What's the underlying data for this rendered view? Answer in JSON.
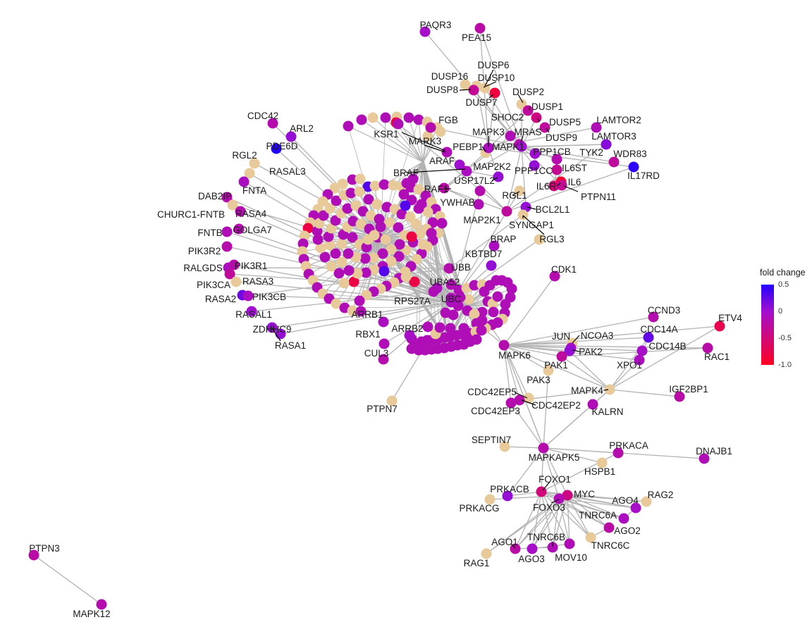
{
  "colors": {
    "edge": "#b3b3b3",
    "unmeasured": "#e8c99a",
    "scale_high": "#2200ff",
    "scale_mid": "#a10fd0",
    "scale_low": "#ff0022"
  },
  "legend": {
    "title": "fold change",
    "ticks": [
      "0.5",
      "0",
      "-0.5",
      "-1.0"
    ],
    "range": [
      -1.0,
      0.5
    ]
  },
  "nodes": [
    {
      "label": "PAQR3",
      "fc": -0.05
    },
    {
      "label": "PEA15",
      "fc": -0.25
    },
    {
      "label": "DUSP6",
      "fc": null
    },
    {
      "label": "DUSP16",
      "fc": null
    },
    {
      "label": "DUSP10",
      "fc": null
    },
    {
      "label": "DUSP8",
      "fc": -0.35
    },
    {
      "label": "DUSP7",
      "fc": -0.85
    },
    {
      "label": "DUSP2",
      "fc": null
    },
    {
      "label": "DUSP1",
      "fc": -0.3
    },
    {
      "label": "DUSP5",
      "fc": -0.45
    },
    {
      "label": "DUSP9",
      "fc": -0.3
    },
    {
      "label": "CDC42",
      "fc": -0.2
    },
    {
      "label": "ARL2",
      "fc": 0.05
    },
    {
      "label": "FGB",
      "fc": -0.2
    },
    {
      "label": "KSR1",
      "fc": -0.15
    },
    {
      "label": "MARK3",
      "fc": -0.15
    },
    {
      "label": "PEBP1",
      "fc": null
    },
    {
      "label": "SHOC2",
      "fc": -0.15
    },
    {
      "label": "MAPK3",
      "fc": -0.1
    },
    {
      "label": "MRAS",
      "fc": -0.2
    },
    {
      "label": "MAPK1",
      "fc": 0.0
    },
    {
      "label": "LAMTOR2",
      "fc": -0.15
    },
    {
      "label": "LAMTOR3",
      "fc": 0.1
    },
    {
      "label": "PDE6D",
      "fc": 0.5
    },
    {
      "label": "RGL2",
      "fc": null
    },
    {
      "label": "RASAL3",
      "fc": null
    },
    {
      "label": "PPP1CB",
      "fc": 0.0
    },
    {
      "label": "TYK2",
      "fc": -0.2
    },
    {
      "label": "WDR83",
      "fc": -0.3
    },
    {
      "label": "IL17RD",
      "fc": 0.45
    },
    {
      "label": "FNTA",
      "fc": -0.1
    },
    {
      "label": "ARAF",
      "fc": 0.0
    },
    {
      "label": "MAP2K2",
      "fc": 0.05
    },
    {
      "label": "PPP1CC",
      "fc": 0.05
    },
    {
      "label": "IL6ST",
      "fc": -0.35
    },
    {
      "label": "BRAF",
      "fc": -0.1
    },
    {
      "label": "USP17L2",
      "fc": -0.2
    },
    {
      "label": "IL6R",
      "fc": -0.5
    },
    {
      "label": "IL6",
      "fc": -0.9
    },
    {
      "label": "DAB2IP",
      "fc": -0.2
    },
    {
      "label": "RAF1",
      "fc": -0.25
    },
    {
      "label": "RGL1",
      "fc": null
    },
    {
      "label": "PTPN11",
      "fc": -0.35
    },
    {
      "label": "CHURC1-FNTB",
      "fc": null
    },
    {
      "label": "RASA4",
      "fc": -0.2
    },
    {
      "label": "YWHAB",
      "fc": -0.15
    },
    {
      "label": "BCL2L1",
      "fc": 0.05
    },
    {
      "label": "FNTB",
      "fc": -0.15
    },
    {
      "label": "GOLGA7",
      "fc": -0.2
    },
    {
      "label": "MAP2K1",
      "fc": -0.3
    },
    {
      "label": "SYNGAP1",
      "fc": null
    },
    {
      "label": "PIK3R2",
      "fc": -0.2
    },
    {
      "label": "RGL3",
      "fc": null
    },
    {
      "label": "BRAP",
      "fc": -0.1
    },
    {
      "label": "RALGDS",
      "fc": -0.1
    },
    {
      "label": "PIK3R1",
      "fc": -0.2
    },
    {
      "label": "KBTBD7",
      "fc": 0.05
    },
    {
      "label": "CDK1",
      "fc": -0.2
    },
    {
      "label": "PIK3CA",
      "fc": -0.3
    },
    {
      "label": "RASA3",
      "fc": null
    },
    {
      "label": "UBB",
      "fc": -0.2
    },
    {
      "label": "UBA52",
      "fc": -0.1
    },
    {
      "label": "RASA2",
      "fc": 0.2
    },
    {
      "label": "PIK3CB",
      "fc": -0.1
    },
    {
      "label": "RPS27A",
      "fc": -0.15
    },
    {
      "label": "UBC",
      "fc": -0.1
    },
    {
      "label": "RASAL1",
      "fc": 0.0
    },
    {
      "label": "ZDHHC9",
      "fc": 0.05
    },
    {
      "label": "RASA1",
      "fc": 0.05
    },
    {
      "label": "ARRB1",
      "fc": -0.1
    },
    {
      "label": "RBX1",
      "fc": -0.15
    },
    {
      "label": "ARRB2",
      "fc": -0.05
    },
    {
      "label": "CUL3",
      "fc": -0.2
    },
    {
      "label": "CCND3",
      "fc": -0.2
    },
    {
      "label": "ETV4",
      "fc": -0.75
    },
    {
      "label": "CDC14A",
      "fc": 0.25
    },
    {
      "label": "JUN",
      "fc": null
    },
    {
      "label": "NCOA3",
      "fc": -0.05
    },
    {
      "label": "MAPK6",
      "fc": -0.2
    },
    {
      "label": "PAK2",
      "fc": 0.05
    },
    {
      "label": "CDC14B",
      "fc": -0.05
    },
    {
      "label": "RAC1",
      "fc": -0.25
    },
    {
      "label": "PAK1",
      "fc": -0.3
    },
    {
      "label": "XPO1",
      "fc": -0.1
    },
    {
      "label": "PTPN7",
      "fc": null
    },
    {
      "label": "PAK3",
      "fc": null
    },
    {
      "label": "CDC42EP5",
      "fc": null
    },
    {
      "label": "MAPK4",
      "fc": null
    },
    {
      "label": "IGF2BP1",
      "fc": -0.25
    },
    {
      "label": "CDC42EP2",
      "fc": -0.2
    },
    {
      "label": "CDC42EP3",
      "fc": -0.2
    },
    {
      "label": "KALRN",
      "fc": -0.15
    },
    {
      "label": "SEPTIN7",
      "fc": null
    },
    {
      "label": "PRKACA",
      "fc": -0.2
    },
    {
      "label": "MAPKAPK5",
      "fc": -0.2
    },
    {
      "label": "DNAJB1",
      "fc": -0.15
    },
    {
      "label": "HSPB1",
      "fc": null
    },
    {
      "label": "FOXO1",
      "fc": -0.5
    },
    {
      "label": "PRKACB",
      "fc": 0.05
    },
    {
      "label": "MYC",
      "fc": -0.45
    },
    {
      "label": "RAG2",
      "fc": null
    },
    {
      "label": "PRKACG",
      "fc": null
    },
    {
      "label": "FOXO3",
      "fc": -0.15
    },
    {
      "label": "AGO4",
      "fc": -0.05
    },
    {
      "label": "TNRC6A",
      "fc": -0.1
    },
    {
      "label": "AGO2",
      "fc": -0.25
    },
    {
      "label": "TNRC6B",
      "fc": -0.15
    },
    {
      "label": "TNRC6C",
      "fc": null
    },
    {
      "label": "AGO1",
      "fc": -0.25
    },
    {
      "label": "AGO3",
      "fc": -0.05
    },
    {
      "label": "MOV10",
      "fc": -0.15
    },
    {
      "label": "RAG1",
      "fc": null
    },
    {
      "label": "PTPN3",
      "fc": -0.25
    },
    {
      "label": "MAPK12",
      "fc": -0.2
    }
  ]
}
